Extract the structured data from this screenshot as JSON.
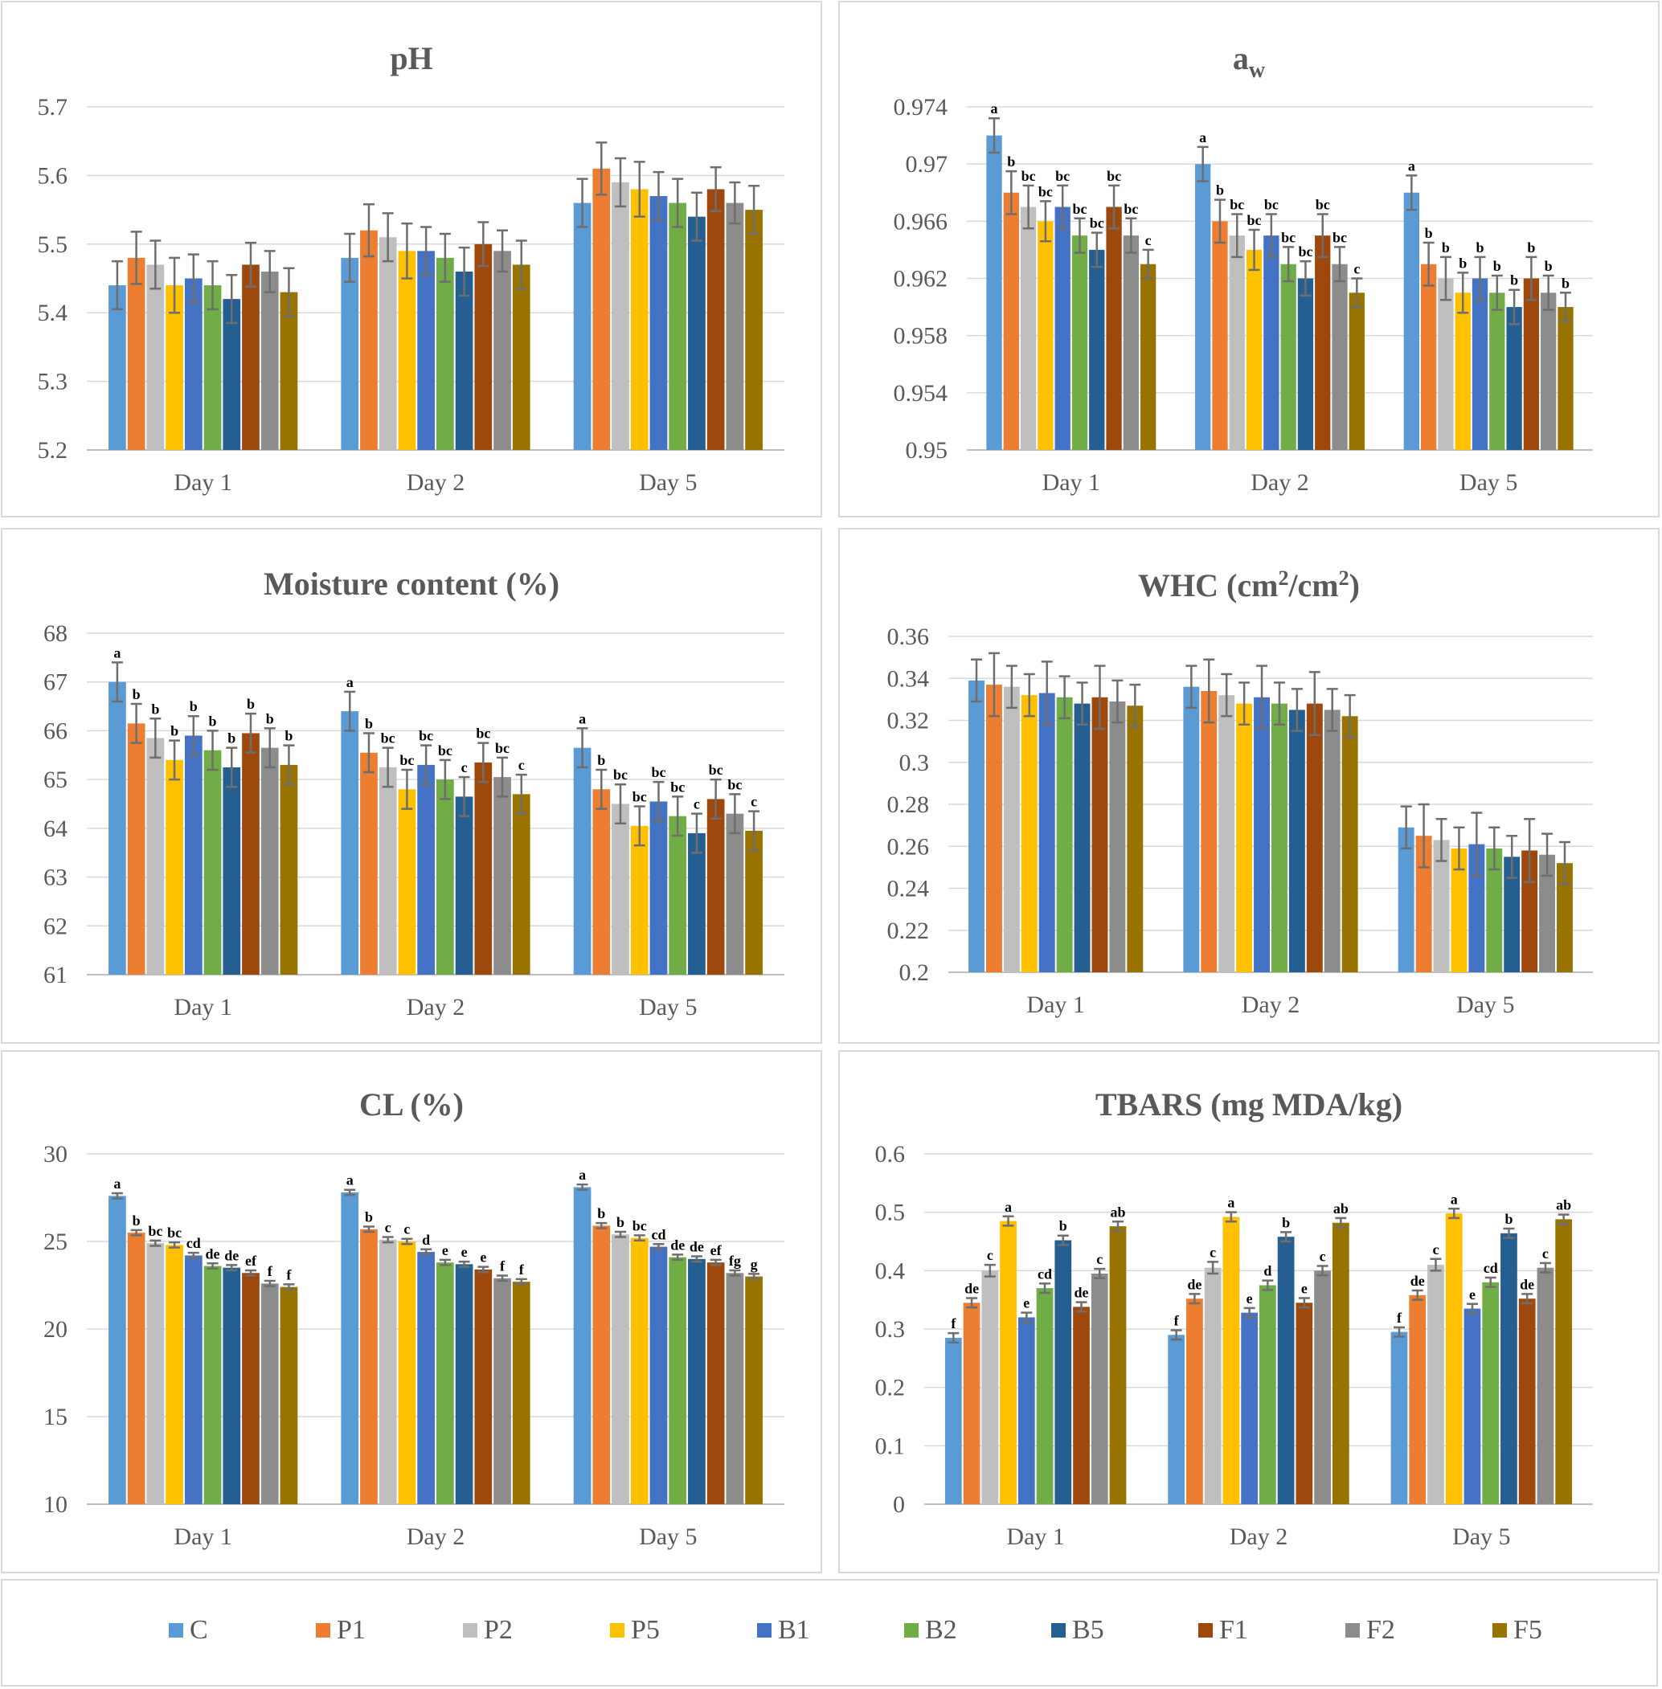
{
  "legend": {
    "items": [
      {
        "key": "C",
        "label": "C",
        "color": "#5b9bd5"
      },
      {
        "key": "P1",
        "label": "P1",
        "color": "#ed7d31"
      },
      {
        "key": "P2",
        "label": "P2",
        "color": "#bfbfbf"
      },
      {
        "key": "P5",
        "label": "P5",
        "color": "#ffc000"
      },
      {
        "key": "B1",
        "label": "B1",
        "color": "#4472c4"
      },
      {
        "key": "B2",
        "label": "B2",
        "color": "#70ad47"
      },
      {
        "key": "B5",
        "label": "B5",
        "color": "#255e91"
      },
      {
        "key": "F1",
        "label": "F1",
        "color": "#9e480e"
      },
      {
        "key": "F2",
        "label": "F2",
        "color": "#8c8c8c"
      },
      {
        "key": "F5",
        "label": "F5",
        "color": "#997300"
      }
    ]
  },
  "chart_data": [
    {
      "id": "ph",
      "type": "bar",
      "title": "pH",
      "categories": [
        "Day 1",
        "Day 2",
        "Day 5"
      ],
      "ylim": [
        5.2,
        5.7
      ],
      "yticks": [
        "5.2",
        "5.3",
        "5.4",
        "5.5",
        "5.6",
        "5.7"
      ],
      "grid": true,
      "series": [
        {
          "name": "C",
          "values": [
            5.44,
            5.48,
            5.56
          ],
          "errors": [
            0.035,
            0.035,
            0.035
          ]
        },
        {
          "name": "P1",
          "values": [
            5.48,
            5.52,
            5.61
          ],
          "errors": [
            0.038,
            0.038,
            0.038
          ]
        },
        {
          "name": "P2",
          "values": [
            5.47,
            5.51,
            5.59
          ],
          "errors": [
            0.035,
            0.035,
            0.035
          ]
        },
        {
          "name": "P5",
          "values": [
            5.44,
            5.49,
            5.58
          ],
          "errors": [
            0.04,
            0.04,
            0.04
          ]
        },
        {
          "name": "B1",
          "values": [
            5.45,
            5.49,
            5.57
          ],
          "errors": [
            0.035,
            0.035,
            0.035
          ]
        },
        {
          "name": "B2",
          "values": [
            5.44,
            5.48,
            5.56
          ],
          "errors": [
            0.035,
            0.035,
            0.035
          ]
        },
        {
          "name": "B5",
          "values": [
            5.42,
            5.46,
            5.54
          ],
          "errors": [
            0.035,
            0.035,
            0.035
          ]
        },
        {
          "name": "F1",
          "values": [
            5.47,
            5.5,
            5.58
          ],
          "errors": [
            0.032,
            0.032,
            0.032
          ]
        },
        {
          "name": "F2",
          "values": [
            5.46,
            5.49,
            5.56
          ],
          "errors": [
            0.03,
            0.03,
            0.03
          ]
        },
        {
          "name": "F5",
          "values": [
            5.43,
            5.47,
            5.55
          ],
          "errors": [
            0.035,
            0.035,
            0.035
          ]
        }
      ],
      "labels": []
    },
    {
      "id": "aw",
      "type": "bar",
      "title": "a",
      "title_sub": "w",
      "categories": [
        "Day 1",
        "Day 2",
        "Day 5"
      ],
      "ylim": [
        0.95,
        0.974
      ],
      "yticks": [
        "0.95",
        "0.954",
        "0.958",
        "0.962",
        "0.966",
        "0.97",
        "0.974"
      ],
      "grid": true,
      "series": [
        {
          "name": "C",
          "values": [
            0.972,
            0.97,
            0.968
          ],
          "errors": [
            0.0012,
            0.0012,
            0.0012
          ]
        },
        {
          "name": "P1",
          "values": [
            0.968,
            0.966,
            0.963
          ],
          "errors": [
            0.0015,
            0.0015,
            0.0015
          ]
        },
        {
          "name": "P2",
          "values": [
            0.967,
            0.965,
            0.962
          ],
          "errors": [
            0.0015,
            0.0015,
            0.0015
          ]
        },
        {
          "name": "P5",
          "values": [
            0.966,
            0.964,
            0.961
          ],
          "errors": [
            0.0014,
            0.0014,
            0.0014
          ]
        },
        {
          "name": "B1",
          "values": [
            0.967,
            0.965,
            0.962
          ],
          "errors": [
            0.0015,
            0.0015,
            0.0015
          ]
        },
        {
          "name": "B2",
          "values": [
            0.965,
            0.963,
            0.961
          ],
          "errors": [
            0.0012,
            0.0012,
            0.0012
          ]
        },
        {
          "name": "B5",
          "values": [
            0.964,
            0.962,
            0.96
          ],
          "errors": [
            0.0012,
            0.0012,
            0.0012
          ]
        },
        {
          "name": "F1",
          "values": [
            0.967,
            0.965,
            0.962
          ],
          "errors": [
            0.0015,
            0.0015,
            0.0015
          ]
        },
        {
          "name": "F2",
          "values": [
            0.965,
            0.963,
            0.961
          ],
          "errors": [
            0.0012,
            0.0012,
            0.0012
          ]
        },
        {
          "name": "F5",
          "values": [
            0.963,
            0.961,
            0.96
          ],
          "errors": [
            0.001,
            0.001,
            0.001
          ]
        }
      ],
      "labels": [
        [
          "a",
          "a",
          "a"
        ],
        [
          "b",
          "b",
          "b"
        ],
        [
          "bc",
          "bc",
          "b"
        ],
        [
          "bc",
          "bc",
          "b"
        ],
        [
          "bc",
          "bc",
          "b"
        ],
        [
          "bc",
          "bc",
          "b"
        ],
        [
          "bc",
          "bc",
          "b"
        ],
        [
          "bc",
          "bc",
          "b"
        ],
        [
          "bc",
          "bc",
          "b"
        ],
        [
          "c",
          "c",
          "b"
        ]
      ]
    },
    {
      "id": "moisture",
      "type": "bar",
      "title": "Moisture content (%)",
      "categories": [
        "Day 1",
        "Day 2",
        "Day 5"
      ],
      "ylim": [
        61,
        68
      ],
      "yticks": [
        "61",
        "62",
        "63",
        "64",
        "65",
        "66",
        "67",
        "68"
      ],
      "grid": true,
      "series": [
        {
          "name": "C",
          "values": [
            67.0,
            66.4,
            65.65
          ],
          "errors": [
            0.4,
            0.4,
            0.4
          ]
        },
        {
          "name": "P1",
          "values": [
            66.15,
            65.55,
            64.8
          ],
          "errors": [
            0.4,
            0.4,
            0.4
          ]
        },
        {
          "name": "P2",
          "values": [
            65.85,
            65.25,
            64.5
          ],
          "errors": [
            0.4,
            0.4,
            0.4
          ]
        },
        {
          "name": "P5",
          "values": [
            65.4,
            64.8,
            64.05
          ],
          "errors": [
            0.4,
            0.4,
            0.4
          ]
        },
        {
          "name": "B1",
          "values": [
            65.9,
            65.3,
            64.55
          ],
          "errors": [
            0.4,
            0.4,
            0.4
          ]
        },
        {
          "name": "B2",
          "values": [
            65.6,
            65.0,
            64.25
          ],
          "errors": [
            0.4,
            0.4,
            0.4
          ]
        },
        {
          "name": "B5",
          "values": [
            65.25,
            64.65,
            63.9
          ],
          "errors": [
            0.4,
            0.4,
            0.4
          ]
        },
        {
          "name": "F1",
          "values": [
            65.95,
            65.35,
            64.6
          ],
          "errors": [
            0.4,
            0.4,
            0.4
          ]
        },
        {
          "name": "F2",
          "values": [
            65.65,
            65.05,
            64.3
          ],
          "errors": [
            0.4,
            0.4,
            0.4
          ]
        },
        {
          "name": "F5",
          "values": [
            65.3,
            64.7,
            63.95
          ],
          "errors": [
            0.4,
            0.4,
            0.4
          ]
        }
      ],
      "labels": [
        [
          "a",
          "a",
          "a"
        ],
        [
          "b",
          "b",
          "b"
        ],
        [
          "b",
          "bc",
          "bc"
        ],
        [
          "b",
          "bc",
          "bc"
        ],
        [
          "b",
          "bc",
          "bc"
        ],
        [
          "b",
          "bc",
          "bc"
        ],
        [
          "b",
          "c",
          "c"
        ],
        [
          "b",
          "bc",
          "bc"
        ],
        [
          "b",
          "bc",
          "bc"
        ],
        [
          "b",
          "c",
          "c"
        ]
      ]
    },
    {
      "id": "whc",
      "type": "bar",
      "title": "WHC (cm",
      "title_sup": "2",
      "title_mid": "/cm",
      "title_end": ")",
      "categories": [
        "Day 1",
        "Day 2",
        "Day 5"
      ],
      "ylim": [
        0.2,
        0.36
      ],
      "yticks": [
        "0.2",
        "0.22",
        "0.24",
        "0.26",
        "0.28",
        "0.3",
        "0.32",
        "0.34",
        "0.36"
      ],
      "grid": true,
      "series": [
        {
          "name": "C",
          "values": [
            0.339,
            0.336,
            0.269
          ],
          "errors": [
            0.01,
            0.01,
            0.01
          ]
        },
        {
          "name": "P1",
          "values": [
            0.337,
            0.334,
            0.265
          ],
          "errors": [
            0.015,
            0.015,
            0.015
          ]
        },
        {
          "name": "P2",
          "values": [
            0.336,
            0.332,
            0.263
          ],
          "errors": [
            0.01,
            0.01,
            0.01
          ]
        },
        {
          "name": "P5",
          "values": [
            0.332,
            0.328,
            0.259
          ],
          "errors": [
            0.01,
            0.01,
            0.01
          ]
        },
        {
          "name": "B1",
          "values": [
            0.333,
            0.331,
            0.261
          ],
          "errors": [
            0.015,
            0.015,
            0.015
          ]
        },
        {
          "name": "B2",
          "values": [
            0.331,
            0.328,
            0.259
          ],
          "errors": [
            0.01,
            0.01,
            0.01
          ]
        },
        {
          "name": "B5",
          "values": [
            0.328,
            0.325,
            0.255
          ],
          "errors": [
            0.01,
            0.01,
            0.01
          ]
        },
        {
          "name": "F1",
          "values": [
            0.331,
            0.328,
            0.258
          ],
          "errors": [
            0.015,
            0.015,
            0.015
          ]
        },
        {
          "name": "F2",
          "values": [
            0.329,
            0.325,
            0.256
          ],
          "errors": [
            0.01,
            0.01,
            0.01
          ]
        },
        {
          "name": "F5",
          "values": [
            0.327,
            0.322,
            0.252
          ],
          "errors": [
            0.01,
            0.01,
            0.01
          ]
        }
      ],
      "labels": []
    },
    {
      "id": "cl",
      "type": "bar",
      "title": "CL (%)",
      "categories": [
        "Day 1",
        "Day 2",
        "Day 5"
      ],
      "ylim": [
        10,
        30
      ],
      "yticks": [
        "10",
        "15",
        "20",
        "25",
        "30"
      ],
      "grid": true,
      "series": [
        {
          "name": "C",
          "values": [
            27.6,
            27.8,
            28.1
          ],
          "errors": [
            0.15,
            0.15,
            0.15
          ]
        },
        {
          "name": "P1",
          "values": [
            25.5,
            25.7,
            25.9
          ],
          "errors": [
            0.15,
            0.15,
            0.15
          ]
        },
        {
          "name": "P2",
          "values": [
            24.9,
            25.1,
            25.4
          ],
          "errors": [
            0.15,
            0.15,
            0.15
          ]
        },
        {
          "name": "P5",
          "values": [
            24.8,
            25.0,
            25.2
          ],
          "errors": [
            0.15,
            0.15,
            0.15
          ]
        },
        {
          "name": "B1",
          "values": [
            24.2,
            24.4,
            24.7
          ],
          "errors": [
            0.15,
            0.15,
            0.15
          ]
        },
        {
          "name": "B2",
          "values": [
            23.6,
            23.8,
            24.1
          ],
          "errors": [
            0.15,
            0.15,
            0.15
          ]
        },
        {
          "name": "B5",
          "values": [
            23.5,
            23.7,
            24.0
          ],
          "errors": [
            0.15,
            0.15,
            0.15
          ]
        },
        {
          "name": "F1",
          "values": [
            23.2,
            23.4,
            23.8
          ],
          "errors": [
            0.15,
            0.15,
            0.15
          ]
        },
        {
          "name": "F2",
          "values": [
            22.6,
            22.9,
            23.2
          ],
          "errors": [
            0.15,
            0.15,
            0.15
          ]
        },
        {
          "name": "F5",
          "values": [
            22.4,
            22.7,
            23.0
          ],
          "errors": [
            0.15,
            0.15,
            0.15
          ]
        }
      ],
      "labels": [
        [
          "a",
          "a",
          "a"
        ],
        [
          "b",
          "b",
          "b"
        ],
        [
          "bc",
          "c",
          "b"
        ],
        [
          "bc",
          "c",
          "bc"
        ],
        [
          "cd",
          "d",
          "cd"
        ],
        [
          "de",
          "e",
          "de"
        ],
        [
          "de",
          "e",
          "de"
        ],
        [
          "ef",
          "e",
          "ef"
        ],
        [
          "f",
          "f",
          "fg"
        ],
        [
          "f",
          "f",
          "g"
        ]
      ]
    },
    {
      "id": "tbars",
      "type": "bar",
      "title": "TBARS (mg MDA/kg)",
      "categories": [
        "Day 1",
        "Day 2",
        "Day 5"
      ],
      "ylim": [
        0,
        0.6
      ],
      "yticks": [
        "0",
        "0.1",
        "0.2",
        "0.3",
        "0.4",
        "0.5",
        "0.6"
      ],
      "grid": true,
      "series": [
        {
          "name": "C",
          "values": [
            0.285,
            0.29,
            0.295
          ],
          "errors": [
            0.008,
            0.008,
            0.008
          ]
        },
        {
          "name": "P1",
          "values": [
            0.345,
            0.352,
            0.358
          ],
          "errors": [
            0.008,
            0.008,
            0.008
          ]
        },
        {
          "name": "P2",
          "values": [
            0.4,
            0.405,
            0.41
          ],
          "errors": [
            0.01,
            0.01,
            0.01
          ]
        },
        {
          "name": "P5",
          "values": [
            0.485,
            0.492,
            0.498
          ],
          "errors": [
            0.008,
            0.008,
            0.008
          ]
        },
        {
          "name": "B1",
          "values": [
            0.32,
            0.328,
            0.335
          ],
          "errors": [
            0.008,
            0.008,
            0.008
          ]
        },
        {
          "name": "B2",
          "values": [
            0.37,
            0.375,
            0.38
          ],
          "errors": [
            0.008,
            0.008,
            0.008
          ]
        },
        {
          "name": "B5",
          "values": [
            0.452,
            0.458,
            0.464
          ],
          "errors": [
            0.008,
            0.008,
            0.008
          ]
        },
        {
          "name": "F1",
          "values": [
            0.338,
            0.345,
            0.352
          ],
          "errors": [
            0.008,
            0.008,
            0.008
          ]
        },
        {
          "name": "F2",
          "values": [
            0.395,
            0.4,
            0.405
          ],
          "errors": [
            0.008,
            0.008,
            0.008
          ]
        },
        {
          "name": "F5",
          "values": [
            0.476,
            0.482,
            0.488
          ],
          "errors": [
            0.008,
            0.008,
            0.008
          ]
        }
      ],
      "labels": [
        [
          "f",
          "f",
          "f"
        ],
        [
          "de",
          "de",
          "de"
        ],
        [
          "c",
          "c",
          "c"
        ],
        [
          "a",
          "a",
          "a"
        ],
        [
          "e",
          "e",
          "e"
        ],
        [
          "cd",
          "d",
          "cd"
        ],
        [
          "b",
          "b",
          "b"
        ],
        [
          "de",
          "e",
          "de"
        ],
        [
          "c",
          "c",
          "c"
        ],
        [
          "ab",
          "ab",
          "ab"
        ]
      ]
    }
  ]
}
